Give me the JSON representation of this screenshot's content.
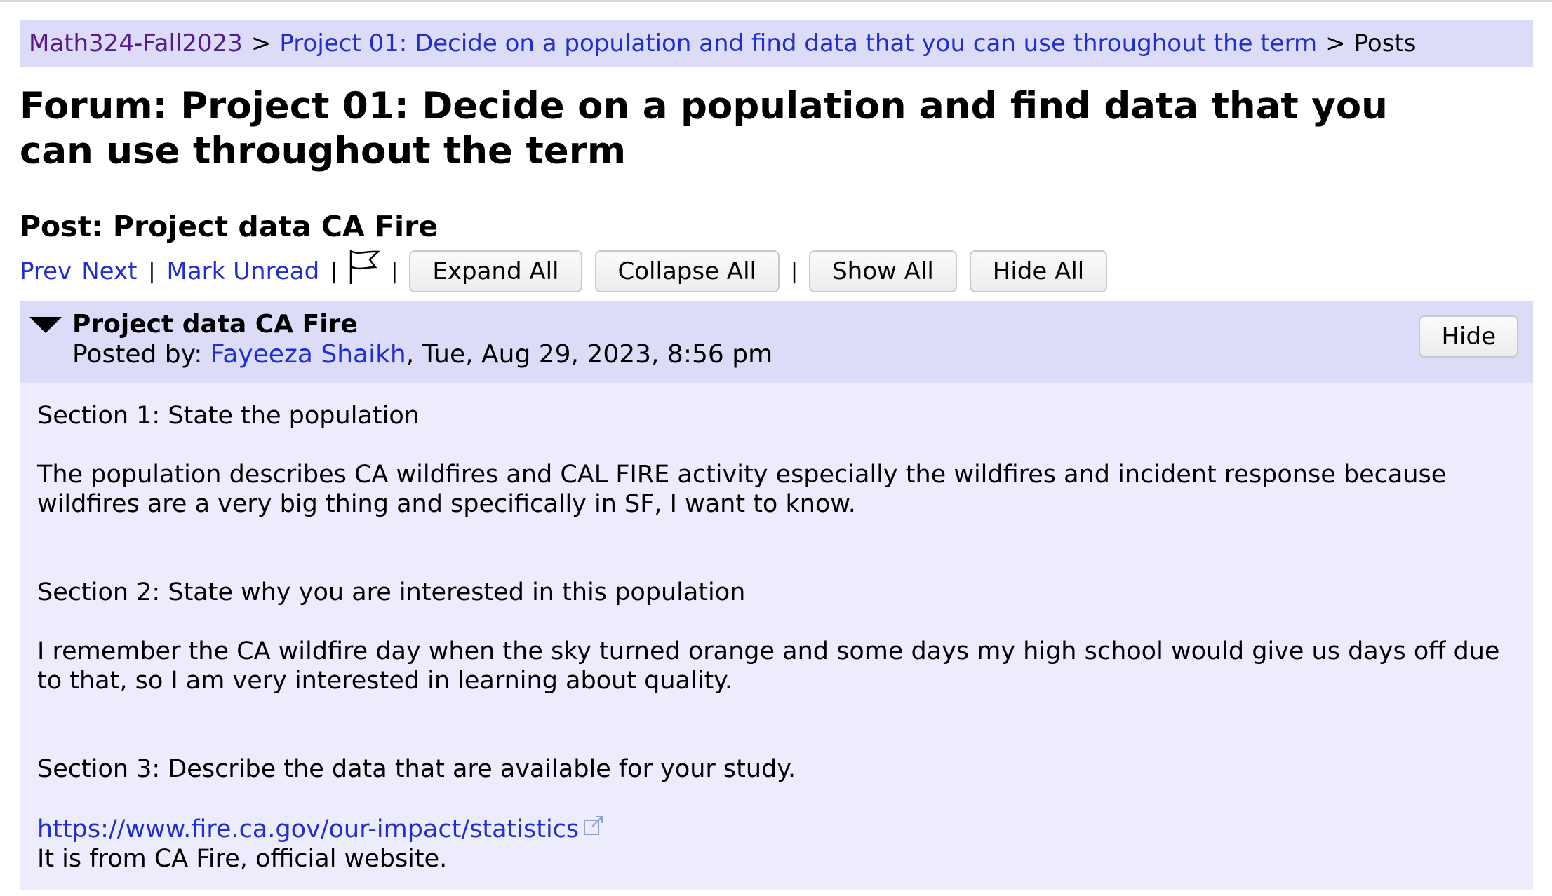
{
  "breadcrumb": {
    "course": "Math324-Fall2023",
    "separator": ">",
    "forum": "Project 01: Decide on a population and find data that you can use throughout the term",
    "current": "Posts"
  },
  "forum_title": "Forum: Project 01: Decide on a population and find data that you can use throughout the term",
  "post_title": "Post: Project data CA Fire",
  "toolbar": {
    "prev": "Prev",
    "next": "Next",
    "mark_unread": "Mark Unread",
    "pipe": "|",
    "expand_all": "Expand All",
    "collapse_all": "Collapse All",
    "show_all": "Show All",
    "hide_all": "Hide All",
    "flag_icon": "flag-icon"
  },
  "post": {
    "subject": "Project data CA Fire",
    "posted_by_label": "Posted by: ",
    "author": "Fayeeza Shaikh",
    "date": ", Tue, Aug 29, 2023, 8:56 pm",
    "hide_label": "Hide",
    "body": {
      "s1_heading": "Section 1: State the population",
      "s1_text": "The population describes CA wildfires and CAL FIRE activity especially the wildfires and incident response because wildfires are a very big thing and specifically in SF, I want to know.",
      "s2_heading": "Section 2: State why you are interested in this population",
      "s2_text": "I remember the CA wildfire day when the sky turned orange and some days my high school would give us days off due to that, so I am very interested in learning about quality.",
      "s3_heading": "Section 3: Describe the data that are available for your study.",
      "link": "https://www.fire.ca.gov/our-impact/statistics",
      "link_note": "It is from CA Fire, official website."
    }
  }
}
